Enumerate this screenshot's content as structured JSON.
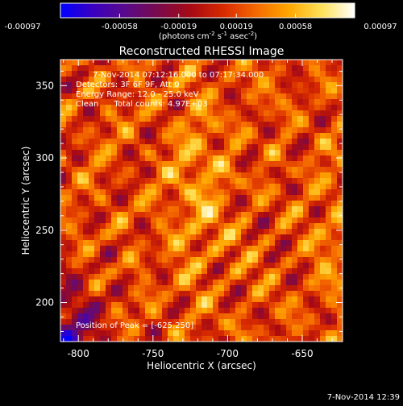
{
  "chart_data": {
    "type": "heatmap",
    "title": "Reconstructed RHESSI Image",
    "xlabel": "Heliocentric X (arcsec)",
    "ylabel": "Heliocentric Y (arcsec)",
    "xlim": [
      -812,
      -623
    ],
    "ylim": [
      173,
      368
    ],
    "xticks": [
      -800,
      -750,
      -700,
      -650
    ],
    "yticks": [
      200,
      250,
      300,
      350
    ],
    "colorbar": {
      "range": [
        -0.00097,
        0.00097
      ],
      "tick_values": [
        -0.00097,
        -0.00058,
        -0.00019,
        0.00019,
        0.00058,
        0.00097
      ],
      "tick_labels": [
        "-0.00097",
        "-0.00058",
        "-0.00019",
        "0.00019",
        "0.00058",
        "0.00097"
      ],
      "units_main": "(photons cm",
      "units_exp1": "-2",
      "units_mid": " s",
      "units_exp2": "-1",
      "units_tail": " asec",
      "units_exp3": "-2",
      "units_end": ")",
      "colors": [
        "#0000ff",
        "#3a00c0",
        "#5a0a8a",
        "#7a0a4a",
        "#a80a14",
        "#d82a00",
        "#f56a00",
        "#ffa800",
        "#ffe25a",
        "#ffffff"
      ]
    },
    "annotations": {
      "time": "7-Nov-2014 07:12:16.000 to 07:17:34.000",
      "detectors": "Detectors: 3F 6F 9F, Att 0",
      "energy": "Energy Range: 12.0 - 25.0 keV",
      "method": "Clean      Total counts: 4.97E+03",
      "peak": "Position of Peak = [-625,250]"
    },
    "peak_position": [
      -625,
      250
    ]
  },
  "timestamp": "7-Nov-2014 12:39"
}
